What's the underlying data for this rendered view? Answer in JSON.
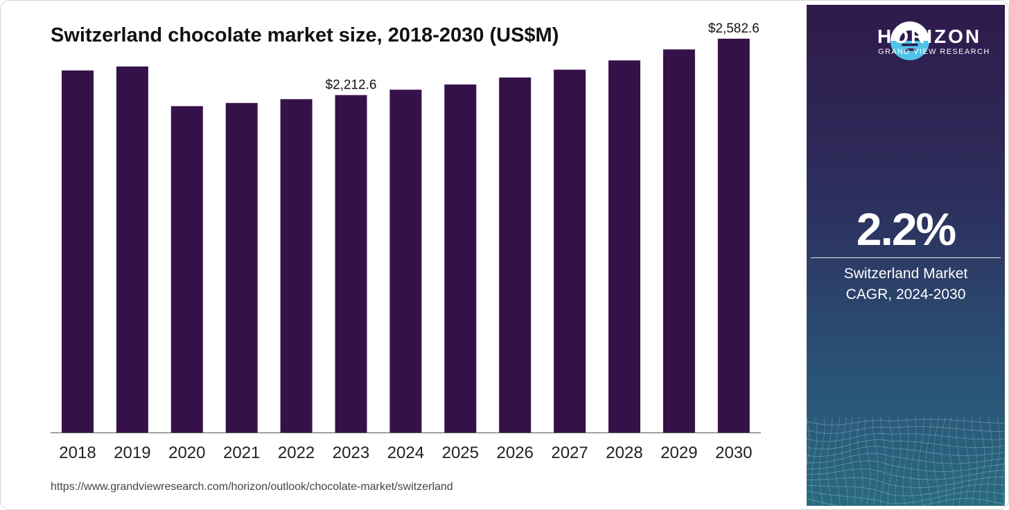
{
  "title": "Switzerland chocolate market size, 2018-2030 (US$M)",
  "source_url": "https://www.grandviewresearch.com/horizon/outlook/chocolate-market/switzerland",
  "colors": {
    "bar": "#35114a",
    "panel_top": "#2f1a4b",
    "panel_bottom": "#2a6a80",
    "logo_accent": "#4fc3e8"
  },
  "panel": {
    "brand_name": "HORIZON",
    "brand_sub": "GRAND VIEW RESEARCH",
    "logo_icon": "horizon-sun-logo-icon",
    "cagr_value": "2.2%",
    "cagr_label_line1": "Switzerland Market",
    "cagr_label_line2": "CAGR, 2024-2030"
  },
  "chart_data": {
    "type": "bar",
    "title": "Switzerland chocolate market size, 2018-2030 (US$M)",
    "xlabel": "",
    "ylabel": "",
    "categories": [
      "2018",
      "2019",
      "2020",
      "2021",
      "2022",
      "2023",
      "2024",
      "2025",
      "2026",
      "2027",
      "2028",
      "2029",
      "2030"
    ],
    "values": [
      2374,
      2400,
      2140,
      2161,
      2186,
      2212.6,
      2248,
      2282,
      2328,
      2379,
      2440,
      2512,
      2582.6
    ],
    "data_labels": [
      {
        "index": 5,
        "text": "$2,212.6"
      },
      {
        "index": 12,
        "text": "$2,582.6"
      }
    ],
    "ylim": [
      0,
      2650
    ],
    "grid": false,
    "legend": "none"
  }
}
